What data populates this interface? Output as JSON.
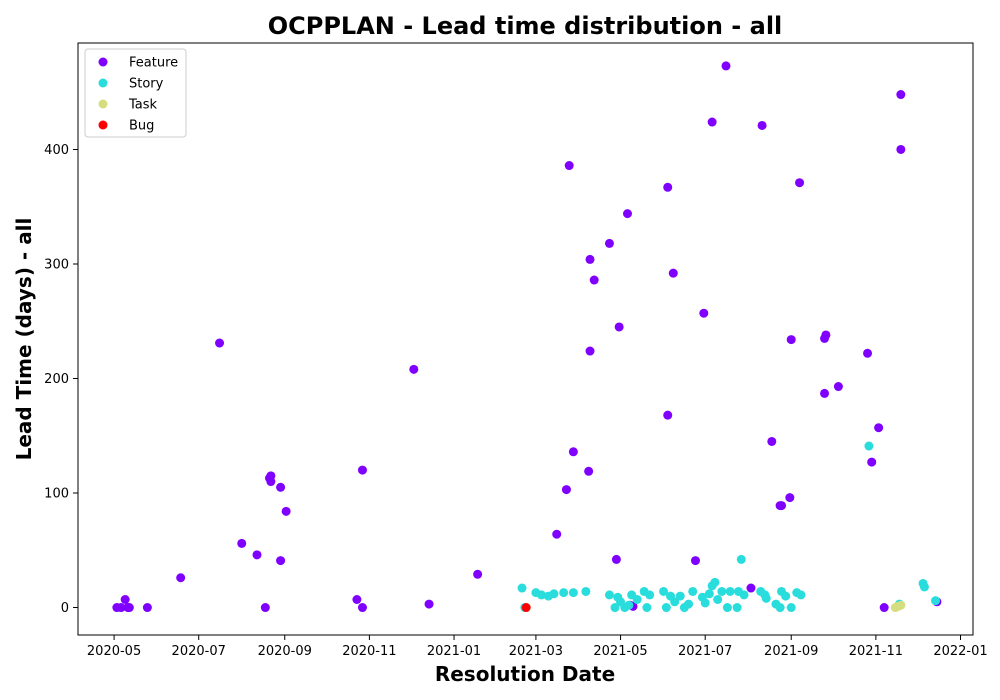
{
  "chart_data": {
    "type": "scatter",
    "title": "OCPPLAN - Lead time distribution - all",
    "xlabel": "Resolution Date",
    "ylabel": "Lead Time (days) - all",
    "xlim": [
      "2020-04-05",
      "2022-01-10"
    ],
    "ylim": [
      -24,
      493
    ],
    "x_ticks": [
      "2020-05",
      "2020-07",
      "2020-09",
      "2020-11",
      "2021-01",
      "2021-03",
      "2021-05",
      "2021-07",
      "2021-09",
      "2021-11",
      "2022-01"
    ],
    "y_ticks": [
      0,
      100,
      200,
      300,
      400
    ],
    "legend_position": "upper-left",
    "grid": false,
    "series": [
      {
        "name": "Feature",
        "color": "#8000ff",
        "points": [
          [
            "2020-05-03",
            0
          ],
          [
            "2020-05-06",
            0
          ],
          [
            "2020-05-09",
            7
          ],
          [
            "2020-05-11",
            0
          ],
          [
            "2020-05-12",
            0
          ],
          [
            "2020-05-25",
            0
          ],
          [
            "2020-06-18",
            26
          ],
          [
            "2020-07-16",
            231
          ],
          [
            "2020-08-01",
            56
          ],
          [
            "2020-08-12",
            46
          ],
          [
            "2020-08-18",
            0
          ],
          [
            "2020-08-21",
            113
          ],
          [
            "2020-08-22",
            115
          ],
          [
            "2020-08-22",
            110
          ],
          [
            "2020-08-29",
            105
          ],
          [
            "2020-08-29",
            41
          ],
          [
            "2020-09-02",
            84
          ],
          [
            "2020-10-23",
            7
          ],
          [
            "2020-10-27",
            0
          ],
          [
            "2020-10-27",
            120
          ],
          [
            "2020-12-03",
            208
          ],
          [
            "2020-12-14",
            3
          ],
          [
            "2021-01-18",
            29
          ],
          [
            "2021-03-16",
            64
          ],
          [
            "2021-03-23",
            103
          ],
          [
            "2021-03-25",
            386
          ],
          [
            "2021-03-28",
            136
          ],
          [
            "2021-04-08",
            119
          ],
          [
            "2021-04-09",
            304
          ],
          [
            "2021-04-09",
            224
          ],
          [
            "2021-04-12",
            286
          ],
          [
            "2021-04-23",
            318
          ],
          [
            "2021-04-28",
            42
          ],
          [
            "2021-04-30",
            245
          ],
          [
            "2021-05-06",
            344
          ],
          [
            "2021-05-08",
            2
          ],
          [
            "2021-05-10",
            1
          ],
          [
            "2021-06-04",
            367
          ],
          [
            "2021-06-04",
            168
          ],
          [
            "2021-06-08",
            292
          ],
          [
            "2021-06-24",
            41
          ],
          [
            "2021-06-30",
            257
          ],
          [
            "2021-07-06",
            424
          ],
          [
            "2021-07-16",
            473
          ],
          [
            "2021-08-03",
            17
          ],
          [
            "2021-08-11",
            421
          ],
          [
            "2021-08-18",
            145
          ],
          [
            "2021-08-24",
            89
          ],
          [
            "2021-08-25",
            89
          ],
          [
            "2021-08-31",
            96
          ],
          [
            "2021-09-01",
            234
          ],
          [
            "2021-09-07",
            371
          ],
          [
            "2021-09-25",
            235
          ],
          [
            "2021-09-26",
            238
          ],
          [
            "2021-09-25",
            187
          ],
          [
            "2021-10-05",
            193
          ],
          [
            "2021-10-26",
            222
          ],
          [
            "2021-10-29",
            127
          ],
          [
            "2021-11-03",
            157
          ],
          [
            "2021-11-07",
            0
          ],
          [
            "2021-11-19",
            400
          ],
          [
            "2021-11-19",
            448
          ],
          [
            "2021-12-15",
            5
          ]
        ]
      },
      {
        "name": "Story",
        "color": "#2adddd",
        "points": [
          [
            "2021-02-19",
            17
          ],
          [
            "2021-02-21",
            0
          ],
          [
            "2021-03-01",
            13
          ],
          [
            "2021-03-05",
            11
          ],
          [
            "2021-03-10",
            10
          ],
          [
            "2021-03-14",
            12
          ],
          [
            "2021-03-21",
            13
          ],
          [
            "2021-03-28",
            13
          ],
          [
            "2021-04-06",
            14
          ],
          [
            "2021-04-23",
            11
          ],
          [
            "2021-04-27",
            0
          ],
          [
            "2021-04-29",
            9
          ],
          [
            "2021-05-01",
            5
          ],
          [
            "2021-05-04",
            0
          ],
          [
            "2021-05-07",
            2
          ],
          [
            "2021-05-09",
            11
          ],
          [
            "2021-05-13",
            7
          ],
          [
            "2021-05-18",
            14
          ],
          [
            "2021-05-20",
            0
          ],
          [
            "2021-05-22",
            11
          ],
          [
            "2021-06-01",
            14
          ],
          [
            "2021-06-03",
            0
          ],
          [
            "2021-06-06",
            10
          ],
          [
            "2021-06-09",
            5
          ],
          [
            "2021-06-13",
            10
          ],
          [
            "2021-06-16",
            0
          ],
          [
            "2021-06-19",
            3
          ],
          [
            "2021-06-22",
            14
          ],
          [
            "2021-06-29",
            9
          ],
          [
            "2021-07-01",
            4
          ],
          [
            "2021-07-04",
            12
          ],
          [
            "2021-07-06",
            19
          ],
          [
            "2021-07-08",
            22
          ],
          [
            "2021-07-10",
            7
          ],
          [
            "2021-07-13",
            14
          ],
          [
            "2021-07-17",
            0
          ],
          [
            "2021-07-19",
            14
          ],
          [
            "2021-07-24",
            0
          ],
          [
            "2021-07-25",
            14
          ],
          [
            "2021-07-27",
            42
          ],
          [
            "2021-07-29",
            11
          ],
          [
            "2021-08-10",
            14
          ],
          [
            "2021-08-13",
            11
          ],
          [
            "2021-08-14",
            8
          ],
          [
            "2021-08-21",
            3
          ],
          [
            "2021-08-24",
            0
          ],
          [
            "2021-08-25",
            14
          ],
          [
            "2021-08-28",
            10
          ],
          [
            "2021-09-01",
            0
          ],
          [
            "2021-09-05",
            13
          ],
          [
            "2021-09-08",
            11
          ],
          [
            "2021-10-27",
            141
          ],
          [
            "2021-11-18",
            3
          ],
          [
            "2021-12-05",
            21
          ],
          [
            "2021-12-06",
            18
          ],
          [
            "2021-12-14",
            6
          ]
        ]
      },
      {
        "name": "Task",
        "color": "#d4dd80",
        "points": [
          [
            "2021-11-15",
            0
          ],
          [
            "2021-11-17",
            1
          ],
          [
            "2021-11-19",
            2
          ]
        ]
      },
      {
        "name": "Bug",
        "color": "#ff0000",
        "points": [
          [
            "2021-02-22",
            0
          ]
        ]
      }
    ]
  }
}
